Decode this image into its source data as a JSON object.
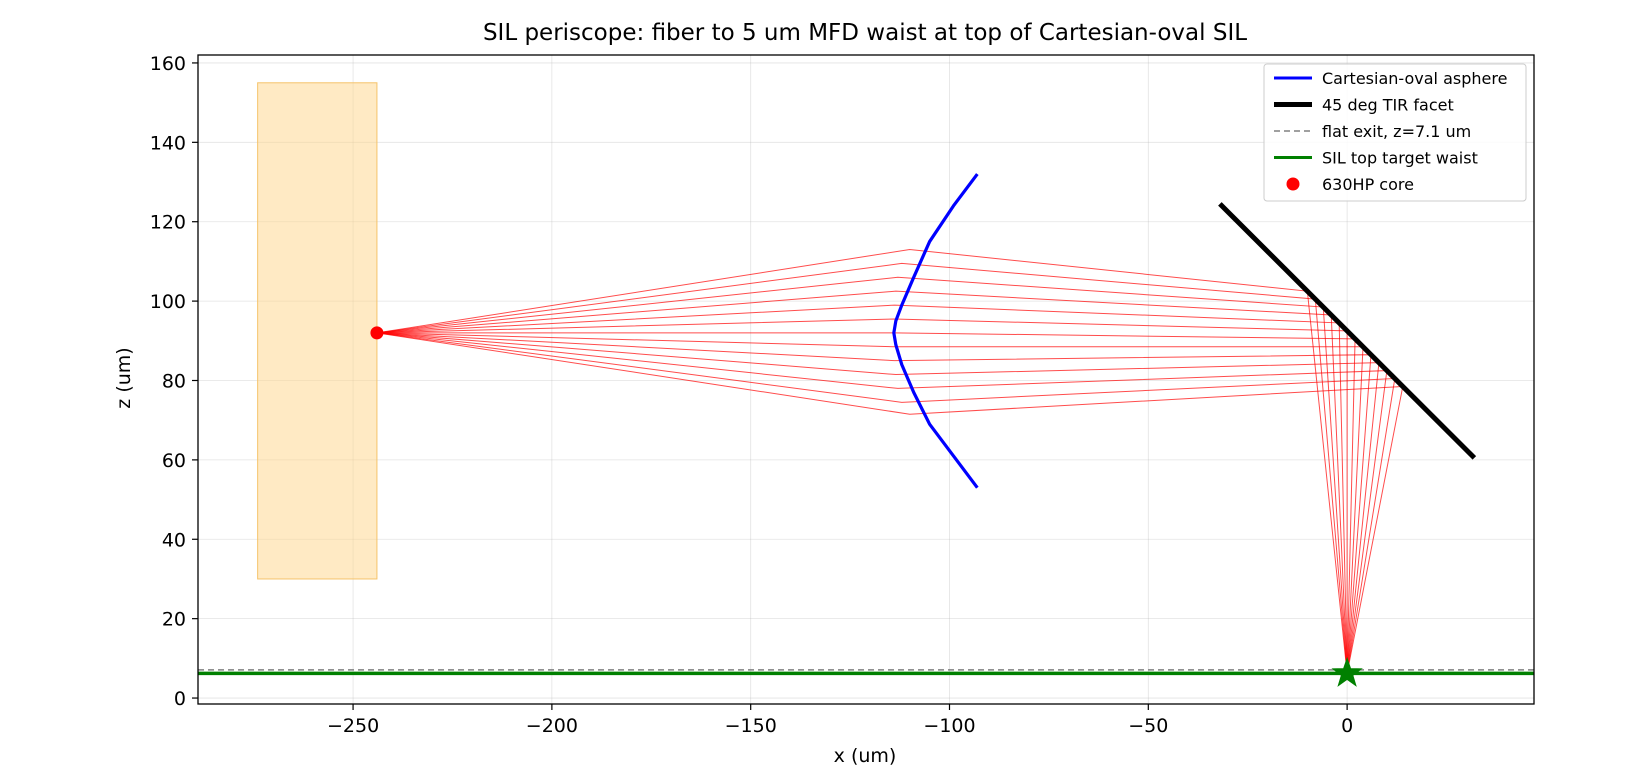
{
  "chart_data": {
    "type": "line",
    "title": "SIL periscope: fiber to 5 um MFD waist at top of Cartesian-oval SIL",
    "xlabel": "x (um)",
    "ylabel": "z (um)",
    "xlim": [
      -289,
      47
    ],
    "ylim": [
      -1.5,
      162
    ],
    "x_ticks": [
      -250,
      -200,
      -150,
      -100,
      -50,
      0
    ],
    "x_tick_labels": [
      "−250",
      "−200",
      "−150",
      "−100",
      "−50",
      "0"
    ],
    "y_ticks": [
      0,
      20,
      40,
      60,
      80,
      100,
      120,
      140,
      160
    ],
    "y_tick_labels": [
      "0",
      "20",
      "40",
      "60",
      "80",
      "100",
      "120",
      "140",
      "160"
    ],
    "grid": true,
    "legend_position": "top-right",
    "colors": {
      "asphere": "#0000ff",
      "facet": "#000000",
      "exit": "#808080",
      "waist": "#008000",
      "rays": "#ff0000",
      "fiber": "#ffd58a"
    },
    "fiber_rect": {
      "x": [
        -274,
        -244
      ],
      "z": [
        30,
        155
      ]
    },
    "fiber_core": {
      "x": -244,
      "z": 92
    },
    "asphere_curve": {
      "x": [
        -93,
        -99,
        -105,
        -109,
        -112,
        -113.5,
        -114,
        -113.5,
        -112,
        -109,
        -105,
        -99,
        -93
      ],
      "z": [
        132,
        124,
        115,
        106,
        99,
        95,
        92,
        89,
        84,
        77,
        69,
        61,
        53
      ]
    },
    "tir_facet": {
      "x": [
        -32,
        32
      ],
      "z": [
        124.5,
        60.5
      ]
    },
    "flat_exit_z": 7.1,
    "waist_z": 6.2,
    "waist_star": {
      "x": 0,
      "z": 6.2
    },
    "rays": {
      "lens_hits": [
        [
          -110,
          113
        ],
        [
          -112,
          109.5
        ],
        [
          -113,
          106
        ],
        [
          -113.5,
          102.5
        ],
        [
          -113.8,
          99
        ],
        [
          -114,
          95.5
        ],
        [
          -114,
          92
        ],
        [
          -114,
          88.5
        ],
        [
          -113.8,
          85
        ],
        [
          -113.5,
          81.5
        ],
        [
          -113,
          78
        ],
        [
          -112,
          74.5
        ],
        [
          -110,
          71.5
        ]
      ],
      "facet_hits": [
        [
          -10,
          102.5
        ],
        [
          -8,
          100.5
        ],
        [
          -6,
          98.5
        ],
        [
          -4,
          96.5
        ],
        [
          -2,
          94.5
        ],
        [
          0,
          92.5
        ],
        [
          2,
          90.5
        ],
        [
          4,
          88.5
        ],
        [
          6,
          86.5
        ],
        [
          8,
          84.5
        ],
        [
          10,
          82.5
        ],
        [
          12,
          80.5
        ],
        [
          14,
          78.5
        ]
      ],
      "focus": {
        "x": 0,
        "z": 6.2
      }
    },
    "series": [
      {
        "name": "Cartesian-oval asphere",
        "style": "solid",
        "color": "#0000ff"
      },
      {
        "name": "45 deg TIR facet",
        "style": "solid-thick",
        "color": "#000000"
      },
      {
        "name": "flat exit, z=7.1 um",
        "style": "dashed",
        "color": "#808080"
      },
      {
        "name": "SIL top target waist",
        "style": "solid",
        "color": "#008000"
      },
      {
        "name": "630HP core",
        "style": "marker",
        "color": "#ff0000"
      }
    ]
  }
}
